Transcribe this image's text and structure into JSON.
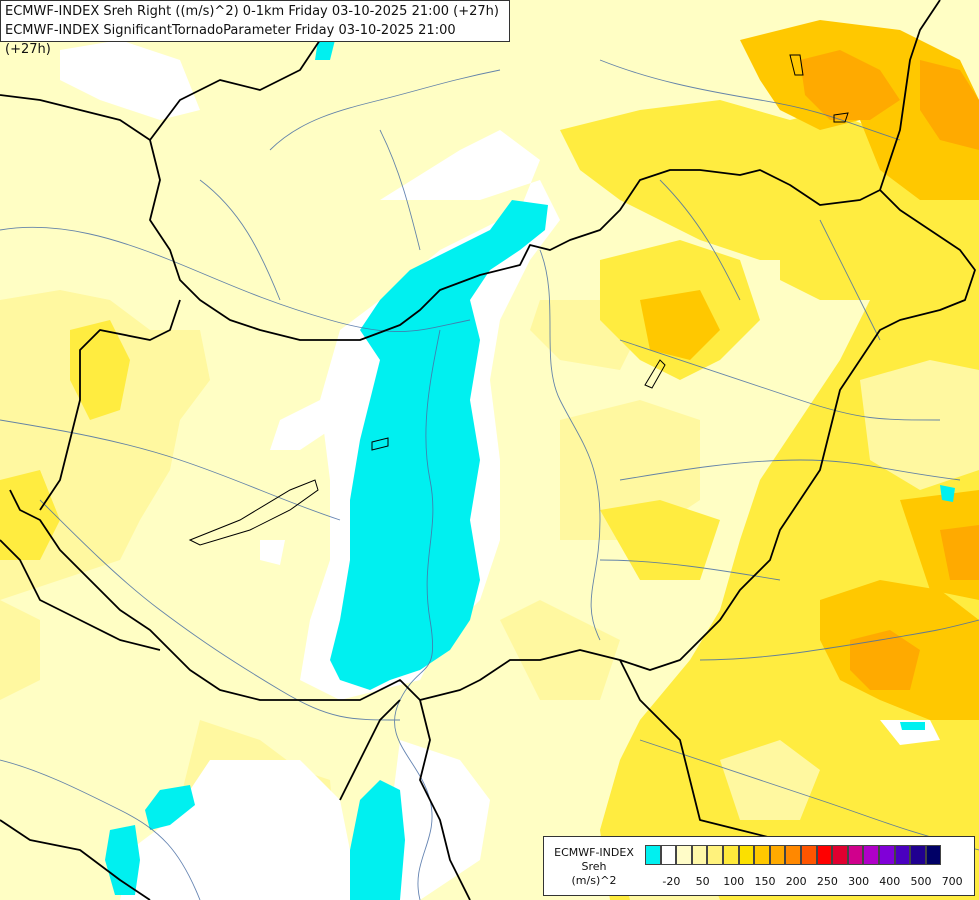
{
  "header": {
    "line1": "ECMWF-INDEX Sreh Right ((m/s)^2) 0-1km Friday 03-10-2025 21:00 (+27h)",
    "line2": "ECMWF-INDEX SignificantTornadoParameter Friday 03-10-2025 21:00 (+27h)"
  },
  "legend": {
    "title": "ECMWF-INDEX",
    "variable": "Sreh",
    "unit": "(m/s)^2",
    "colors": [
      "#00f0f0",
      "#ffffff",
      "#fffcc8",
      "#fff8a8",
      "#fff27c",
      "#ffea3c",
      "#fbe000",
      "#ffc800",
      "#ffaa00",
      "#ff8800",
      "#ff5500",
      "#ff0000",
      "#e00030",
      "#d0008c",
      "#b000c8",
      "#8000d8",
      "#4a00c0",
      "#200090",
      "#000066"
    ],
    "ticks": [
      "-20",
      "50",
      "100",
      "150",
      "200",
      "250",
      "300",
      "400",
      "500",
      "700"
    ]
  }
}
